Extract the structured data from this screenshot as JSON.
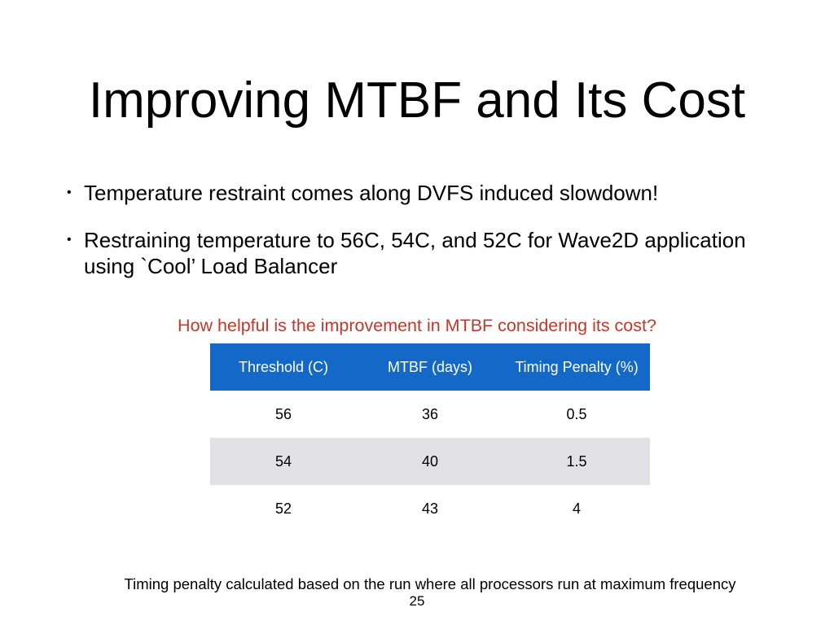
{
  "slide": {
    "title": "Improving MTBF and Its Cost",
    "bullets": [
      "Temperature restraint comes along DVFS induced slowdown!",
      "Restraining temperature to 56C, 54C, and 52C for Wave2D application using `Cool’ Load Balancer"
    ],
    "bullet_marker": "•",
    "question": "How helpful is the improvement in MTBF considering its cost?",
    "question_color": "#c0392b",
    "footnote": "Timing penalty calculated based on the run where all processors run at maximum frequency",
    "page_number": "25"
  },
  "table": {
    "header_color": "#1469c8",
    "headers": [
      "Threshold (C)",
      "MTBF (days)",
      "Timing Penalty (%)"
    ],
    "rows": [
      [
        "56",
        "36",
        "0.5"
      ],
      [
        "54",
        "40",
        "1.5"
      ],
      [
        "52",
        "43",
        "4"
      ]
    ]
  }
}
